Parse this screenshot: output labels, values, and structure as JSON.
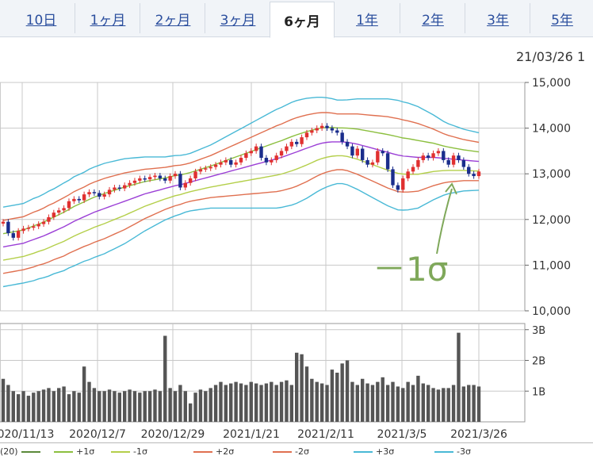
{
  "tabs": [
    {
      "label": "10日"
    },
    {
      "label": "1ヶ月"
    },
    {
      "label": "2ヶ月"
    },
    {
      "label": "3ヶ月"
    },
    {
      "label": "6ヶ月",
      "active": true
    },
    {
      "label": "1年"
    },
    {
      "label": "2年"
    },
    {
      "label": "3年"
    },
    {
      "label": "5年"
    }
  ],
  "date_stamp": "21/03/26 1",
  "annotation": {
    "text": "－1σ",
    "color": "#7fa85a"
  },
  "legend": {
    "items": [
      {
        "label": "(20)",
        "color": "#5b8a3a"
      },
      {
        "label": "+1σ",
        "color": "#8cbf3f"
      },
      {
        "label": "-1σ",
        "color": "#b4cf4a"
      },
      {
        "label": "+2σ",
        "color": "#e07050"
      },
      {
        "label": "-2σ",
        "color": "#e07050"
      },
      {
        "label": "+3σ",
        "color": "#49b9d6"
      },
      {
        "label": "-3σ",
        "color": "#49b9d6"
      }
    ]
  },
  "chart_data": {
    "type": "candlestick",
    "price_axis": {
      "ticks": [
        "15,000",
        "14,000",
        "13,000",
        "12,000",
        "11,000",
        "10,000"
      ],
      "ylim": [
        10000,
        15000
      ]
    },
    "volume_axis": {
      "ticks": [
        "3B",
        "2B",
        "1B"
      ],
      "ylim": [
        0,
        3.2
      ],
      "unit": "B"
    },
    "x_labels": [
      "2020/11/13",
      "2020/12/7",
      "2020/12/29",
      "2021/1/21",
      "2021/2/11",
      "2021/3/5",
      "2021/3/26"
    ],
    "close": [
      11950,
      11700,
      11600,
      11750,
      11800,
      11820,
      11850,
      11900,
      11950,
      12050,
      12150,
      12200,
      12250,
      12400,
      12450,
      12420,
      12550,
      12600,
      12580,
      12500,
      12550,
      12650,
      12700,
      12680,
      12750,
      12800,
      12850,
      12900,
      12880,
      12930,
      12960,
      12900,
      12850,
      12950,
      13000,
      12700,
      12800,
      12900,
      13050,
      13100,
      13120,
      13150,
      13200,
      13250,
      13300,
      13200,
      13250,
      13350,
      13450,
      13500,
      13600,
      13350,
      13250,
      13300,
      13400,
      13500,
      13600,
      13700,
      13650,
      13800,
      13900,
      13950,
      14000,
      14050,
      14000,
      13950,
      13900,
      13700,
      13600,
      13400,
      13550,
      13300,
      13200,
      13250,
      13500,
      13450,
      13100,
      12750,
      12650,
      12900,
      13050,
      13150,
      13300,
      13400,
      13350,
      13450,
      13500,
      13300,
      13200,
      13400,
      13300,
      13150,
      13000,
      12950,
      13050
    ],
    "volume": [
      1.4,
      1.2,
      1.0,
      0.9,
      1.0,
      0.85,
      0.95,
      1.0,
      1.05,
      1.1,
      1.0,
      1.1,
      1.15,
      0.9,
      1.0,
      0.95,
      1.8,
      1.3,
      1.1,
      1.0,
      1.0,
      1.05,
      1.0,
      0.95,
      1.0,
      1.05,
      1.0,
      0.95,
      1.0,
      1.0,
      1.05,
      1.0,
      2.8,
      1.1,
      1.0,
      1.2,
      1.0,
      0.6,
      0.95,
      1.05,
      1.0,
      1.1,
      1.2,
      1.3,
      1.2,
      1.25,
      1.3,
      1.25,
      1.2,
      1.3,
      1.25,
      1.2,
      1.25,
      1.3,
      1.2,
      1.3,
      1.35,
      1.2,
      2.25,
      2.2,
      1.8,
      1.4,
      1.3,
      1.25,
      1.2,
      1.7,
      1.6,
      1.9,
      2.0,
      1.3,
      1.2,
      1.4,
      1.25,
      1.2,
      1.3,
      1.45,
      1.2,
      1.3,
      1.15,
      1.1,
      1.3,
      1.2,
      1.5,
      1.25,
      1.2,
      1.1,
      1.05,
      1.1,
      1.1,
      1.2,
      2.9,
      1.15,
      1.2,
      1.2,
      1.15
    ],
    "ma20": [
      11400,
      11420,
      11440,
      11460,
      11480,
      11520,
      11560,
      11600,
      11640,
      11690,
      11740,
      11790,
      11840,
      11900,
      11960,
      12010,
      12060,
      12110,
      12160,
      12200,
      12240,
      12280,
      12320,
      12360,
      12400,
      12440,
      12480,
      12520,
      12560,
      12590,
      12620,
      12650,
      12680,
      12710,
      12740,
      12760,
      12790,
      12820,
      12850,
      12880,
      12910,
      12940,
      12970,
      13000,
      13030,
      13060,
      13090,
      13120,
      13150,
      13180,
      13210,
      13240,
      13270,
      13300,
      13330,
      13360,
      13400,
      13440,
      13480,
      13520,
      13560,
      13600,
      13640,
      13670,
      13690,
      13700,
      13700,
      13700,
      13690,
      13670,
      13650,
      13620,
      13590,
      13560,
      13530,
      13500,
      13470,
      13440,
      13410,
      13390,
      13380,
      13370,
      13360,
      13360,
      13360,
      13360,
      13350,
      13340,
      13330,
      13320,
      13310,
      13300,
      13290,
      13280,
      13270
    ],
    "sd": [
      290,
      290,
      290,
      290,
      290,
      295,
      300,
      300,
      305,
      310,
      310,
      315,
      320,
      320,
      325,
      325,
      325,
      330,
      330,
      330,
      330,
      325,
      320,
      315,
      310,
      300,
      290,
      280,
      270,
      260,
      250,
      240,
      230,
      225,
      220,
      215,
      210,
      210,
      215,
      220,
      225,
      230,
      240,
      250,
      260,
      270,
      280,
      290,
      300,
      310,
      320,
      330,
      340,
      350,
      360,
      365,
      370,
      375,
      375,
      370,
      365,
      355,
      345,
      335,
      325,
      315,
      305,
      305,
      310,
      320,
      330,
      340,
      350,
      360,
      370,
      380,
      390,
      395,
      400,
      395,
      390,
      380,
      370,
      350,
      330,
      310,
      290,
      270,
      255,
      245,
      235,
      225,
      220,
      215,
      210
    ]
  }
}
